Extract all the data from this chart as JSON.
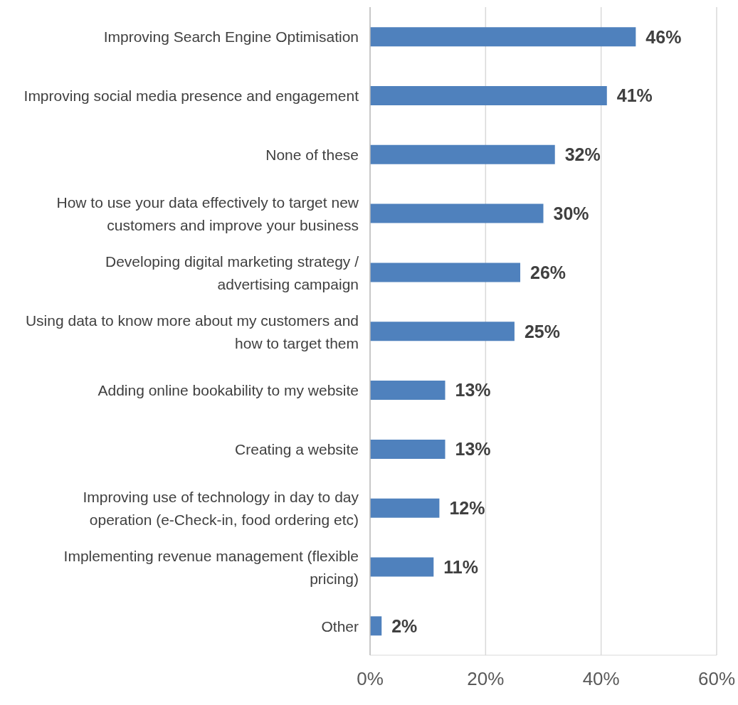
{
  "chart_data": {
    "type": "bar",
    "orientation": "horizontal",
    "categories": [
      "Improving Search Engine Optimisation",
      "Improving social media presence and engagement",
      "None of these",
      "How to use your data effectively to target new customers and improve your business",
      "Developing digital marketing strategy / advertising campaign",
      "Using data to know more about my customers and how to target them",
      "Adding online bookability to my website",
      "Creating a website",
      "Improving use of technology in day to day operation (e-Check-in, food ordering etc)",
      "Implementing revenue management (flexible pricing)",
      "Other"
    ],
    "values": [
      46,
      41,
      32,
      30,
      26,
      25,
      13,
      13,
      12,
      11,
      2
    ],
    "value_labels": [
      "46%",
      "41%",
      "32%",
      "30%",
      "26%",
      "25%",
      "13%",
      "13%",
      "12%",
      "11%",
      "2%"
    ],
    "color": "#4f81bd",
    "xlim": [
      0,
      60
    ],
    "xticks": [
      {
        "value": 0,
        "label": "0%"
      },
      {
        "value": 20,
        "label": "20%"
      },
      {
        "value": 40,
        "label": "40%"
      },
      {
        "value": 60,
        "label": "60%"
      }
    ],
    "grid": "x",
    "legend": false
  }
}
